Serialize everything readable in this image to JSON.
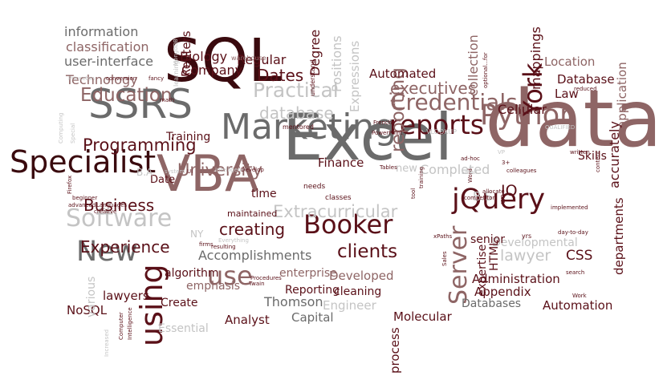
{
  "colors": {
    "dark": "#3a0a0e",
    "maroon": "#5a1018",
    "rose": "#8e6565",
    "gray": "#6b6b6b",
    "lightgray": "#c4c4c4"
  },
  "words": [
    {
      "text": "data",
      "color": "rose"
    },
    {
      "text": "Excel",
      "color": "gray"
    },
    {
      "text": "SQL",
      "color": "dark"
    },
    {
      "text": "VBA",
      "color": "rose"
    },
    {
      "text": "SSRS",
      "color": "gray"
    },
    {
      "text": "Marketing",
      "color": "gray"
    },
    {
      "text": "Specialist",
      "color": "dark"
    },
    {
      "text": "Software",
      "color": "lightgray"
    },
    {
      "text": "reports",
      "color": "maroon"
    },
    {
      "text": "Python",
      "color": "rose"
    },
    {
      "text": "jQuery",
      "color": "maroon"
    },
    {
      "text": "Booker",
      "color": "maroon"
    },
    {
      "text": "New",
      "color": "gray"
    },
    {
      "text": "using",
      "color": "maroon"
    },
    {
      "text": "Server",
      "color": "rose"
    },
    {
      "text": "York",
      "color": "maroon"
    },
    {
      "text": "use",
      "color": "rose"
    },
    {
      "text": "Credentials",
      "color": "rose"
    },
    {
      "text": "executives",
      "color": "rose"
    },
    {
      "text": "Practical",
      "color": "lightgray"
    },
    {
      "text": "database",
      "color": "lightgray"
    },
    {
      "text": "Education",
      "color": "rose"
    },
    {
      "text": "Programming",
      "color": "maroon"
    },
    {
      "text": "Experience",
      "color": "maroon"
    },
    {
      "text": "University",
      "color": "rose"
    },
    {
      "text": "Business",
      "color": "maroon"
    },
    {
      "text": "Extracurricular",
      "color": "lightgray"
    },
    {
      "text": "creating",
      "color": "maroon"
    },
    {
      "text": "clients",
      "color": "maroon"
    },
    {
      "text": "Dates",
      "color": "maroon"
    },
    {
      "text": "reporting",
      "color": "rose"
    },
    {
      "text": "Company",
      "color": "maroon"
    },
    {
      "text": "Technology",
      "color": "rose"
    },
    {
      "text": "information",
      "color": "gray"
    },
    {
      "text": "classification",
      "color": "rose"
    },
    {
      "text": "user-interface",
      "color": "gray"
    },
    {
      "text": "Biology",
      "color": "maroon"
    },
    {
      "text": "Regular",
      "color": "maroon"
    },
    {
      "text": "Reuters",
      "color": "maroon"
    },
    {
      "text": "Degree",
      "color": "maroon"
    },
    {
      "text": "Positions",
      "color": "lightgray"
    },
    {
      "text": "Expressions",
      "color": "lightgray"
    },
    {
      "text": "collection",
      "color": "rose"
    },
    {
      "text": "Automated",
      "color": "maroon"
    },
    {
      "text": "mappings",
      "color": "maroon"
    },
    {
      "text": "Location",
      "color": "rose"
    },
    {
      "text": "Database",
      "color": "maroon"
    },
    {
      "text": "Law",
      "color": "maroon"
    },
    {
      "text": "Cellular",
      "color": "maroon"
    },
    {
      "text": "accurately",
      "color": "maroon"
    },
    {
      "text": "application",
      "color": "rose"
    },
    {
      "text": "Skills",
      "color": "maroon"
    },
    {
      "text": "Finance",
      "color": "maroon"
    },
    {
      "text": "Completed",
      "color": "lightgray"
    },
    {
      "text": "Training",
      "color": "maroon"
    },
    {
      "text": "Date",
      "color": "maroon"
    },
    {
      "text": "time",
      "color": "maroon"
    },
    {
      "text": "Accomplishments",
      "color": "gray"
    },
    {
      "text": "algorithm",
      "color": "maroon"
    },
    {
      "text": "emphasis",
      "color": "rose"
    },
    {
      "text": "enterprise",
      "color": "rose"
    },
    {
      "text": "Developed",
      "color": "rose"
    },
    {
      "text": "cleaning",
      "color": "maroon"
    },
    {
      "text": "Reporting",
      "color": "maroon"
    },
    {
      "text": "Thomson",
      "color": "gray"
    },
    {
      "text": "Engineer",
      "color": "lightgray"
    },
    {
      "text": "Capital",
      "color": "gray"
    },
    {
      "text": "Analyst",
      "color": "maroon"
    },
    {
      "text": "Create",
      "color": "maroon"
    },
    {
      "text": "lawyers",
      "color": "maroon"
    },
    {
      "text": "NoSQL",
      "color": "maroon"
    },
    {
      "text": "Essential",
      "color": "lightgray"
    },
    {
      "text": "various",
      "color": "lightgray"
    },
    {
      "text": "Molecular",
      "color": "maroon"
    },
    {
      "text": "process",
      "color": "maroon"
    },
    {
      "text": "Databases",
      "color": "gray"
    },
    {
      "text": "Automation",
      "color": "maroon"
    },
    {
      "text": "Administration",
      "color": "maroon"
    },
    {
      "text": "Appendix",
      "color": "maroon"
    },
    {
      "text": "departments",
      "color": "maroon"
    },
    {
      "text": "lawyer",
      "color": "lightgray"
    },
    {
      "text": "CSS",
      "color": "maroon"
    },
    {
      "text": "Developmental",
      "color": "lightgray"
    },
    {
      "text": "HTML",
      "color": "maroon"
    },
    {
      "text": "expertise",
      "color": "maroon"
    },
    {
      "text": "senior",
      "color": "maroon"
    },
    {
      "text": "IQ",
      "color": "maroon"
    },
    {
      "text": "B.S",
      "color": "lightgray"
    },
    {
      "text": "new",
      "color": "lightgray"
    },
    {
      "text": "NY",
      "color": "lightgray"
    },
    {
      "text": "B.A",
      "color": "lightgray"
    },
    {
      "text": "maintained",
      "color": "maroon"
    },
    {
      "text": "classes",
      "color": "maroon"
    },
    {
      "text": "needs",
      "color": "maroon"
    },
    {
      "text": "learning",
      "color": "lightgray"
    },
    {
      "text": "MongoDB",
      "color": "lightgray"
    },
    {
      "text": "warehouse",
      "color": "rose"
    },
    {
      "text": "understand",
      "color": "maroon"
    },
    {
      "text": "mentored",
      "color": "maroon"
    },
    {
      "text": "Princeton",
      "color": "lightgray"
    },
    {
      "text": "conversion",
      "color": "maroon"
    },
    {
      "text": "fancy",
      "color": "maroon"
    },
    {
      "text": "math",
      "color": "maroon"
    },
    {
      "text": "Computing",
      "color": "lightgray"
    },
    {
      "text": "Special",
      "color": "lightgray"
    },
    {
      "text": "Firefox",
      "color": "maroon"
    },
    {
      "text": "beginner",
      "color": "maroon"
    },
    {
      "text": "advanced",
      "color": "maroon"
    },
    {
      "text": "Languages",
      "color": "maroon"
    },
    {
      "text": "creative",
      "color": "maroon"
    },
    {
      "text": "system",
      "color": "lightgray"
    },
    {
      "text": "UI",
      "color": "maroon"
    },
    {
      "text": "intelligence",
      "color": "lightgray"
    },
    {
      "text": "Develop",
      "color": "maroon"
    },
    {
      "text": "resulting",
      "color": "maroon"
    },
    {
      "text": "Everything",
      "color": "lightgray"
    },
    {
      "text": "firms",
      "color": "maroon"
    },
    {
      "text": "Procedures",
      "color": "maroon"
    },
    {
      "text": "Twain",
      "color": "maroon"
    },
    {
      "text": "Computer",
      "color": "maroon"
    },
    {
      "text": "Intelligence",
      "color": "maroon"
    },
    {
      "text": "Increased",
      "color": "lightgray"
    },
    {
      "text": "French",
      "color": "maroon"
    },
    {
      "text": "PowerPoint",
      "color": "maroon"
    },
    {
      "text": "VLOOKUP",
      "color": "lightgray"
    },
    {
      "text": "Tables",
      "color": "maroon"
    },
    {
      "text": "tool",
      "color": "maroon"
    },
    {
      "text": "training",
      "color": "maroon"
    },
    {
      "text": "ad-hoc",
      "color": "maroon"
    },
    {
      "text": "allocate",
      "color": "maroon"
    },
    {
      "text": "competitor",
      "color": "maroon"
    },
    {
      "text": "Word",
      "color": "maroon"
    },
    {
      "text": "Email",
      "color": "lightgray"
    },
    {
      "text": "xPaths",
      "color": "maroon"
    },
    {
      "text": "Sales",
      "color": "maroon"
    },
    {
      "text": "3+",
      "color": "maroon"
    },
    {
      "text": "VP",
      "color": "lightgray"
    },
    {
      "text": "colleagues",
      "color": "maroon"
    },
    {
      "text": "WP",
      "color": "maroon"
    },
    {
      "text": "optional...for",
      "color": "maroon"
    },
    {
      "text": "reduced",
      "color": "maroon"
    },
    {
      "text": "QUALIFIED",
      "color": "lightgray"
    },
    {
      "text": "written",
      "color": "maroon"
    },
    {
      "text": "content",
      "color": "maroon"
    },
    {
      "text": "implemented",
      "color": "maroon"
    },
    {
      "text": "day-to-day",
      "color": "maroon"
    },
    {
      "text": "yrs",
      "color": "maroon"
    },
    {
      "text": "search",
      "color": "maroon"
    },
    {
      "text": "Work",
      "color": "maroon"
    }
  ]
}
